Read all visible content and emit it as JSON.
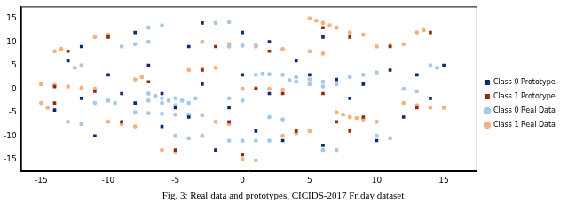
{
  "chart_data": {
    "type": "scatter",
    "title": "Fig. 3: Real data and prototypes, CICIDS-2017 Friday dataset",
    "xlim": [
      -16.5,
      17.5
    ],
    "xticks": [
      -15,
      -10,
      -5,
      0,
      5,
      10,
      15
    ],
    "ylim": [
      -17.5,
      17.5
    ],
    "yticks": [
      -15,
      -10,
      -5,
      0,
      5,
      10,
      15
    ],
    "grid": false,
    "legend": "right",
    "series": [
      {
        "name": "Class 0 Real Data",
        "color": "#a3c8e8",
        "marker": "circle",
        "x": [
          -7,
          -6.5,
          -6,
          -5.5,
          -5,
          -4.5,
          -4,
          -6,
          -5,
          -7,
          -3.5,
          -8,
          -7,
          -6,
          -5,
          -4,
          -3,
          3,
          4,
          5,
          6,
          7,
          4,
          5,
          3.5,
          6,
          8,
          9,
          10,
          -10,
          -9.5,
          -11,
          0,
          1,
          2,
          -1,
          -5,
          -4,
          -3,
          -9,
          -8,
          -7,
          1,
          1.5,
          2,
          -1,
          0,
          1,
          -12,
          -12.5,
          12,
          13,
          10,
          11,
          -2,
          -1,
          6,
          7,
          -13,
          -12,
          -1,
          0,
          14,
          14.5,
          2,
          3,
          -7,
          -6
        ],
        "values": [
          -1,
          -1.5,
          -2,
          -2.5,
          -2,
          -2.5,
          -3,
          -3,
          -3.5,
          -2.5,
          -2,
          -5,
          -5.2,
          -5.3,
          -5.5,
          -5.5,
          -5.6,
          3,
          2.5,
          2,
          1.5,
          1,
          1.5,
          1,
          1.8,
          0.5,
          2.5,
          3,
          3.5,
          -2.5,
          -3,
          -3,
          -11,
          -11,
          -11,
          -11,
          -10,
          -10.5,
          -10,
          9,
          9.5,
          10,
          3,
          3.2,
          3.1,
          9,
          9.2,
          9.3,
          5,
          4.5,
          0,
          -0.5,
          -10,
          -10.5,
          14,
          14.2,
          -13,
          -13,
          -7,
          -7.5,
          -2,
          -2.5,
          5,
          4.5,
          -6,
          -6.5,
          13,
          13.5
        ]
      },
      {
        "name": "Class 1 Real Data",
        "color": "#f5b07f",
        "marker": "circle",
        "x": [
          5,
          6,
          7,
          8,
          9,
          5.5,
          6.5,
          -3,
          -1,
          1,
          3,
          5,
          6,
          7,
          7.5,
          8,
          9,
          10,
          8.5,
          0,
          1,
          2,
          3,
          -15,
          -14,
          -13,
          -12,
          -11,
          -10,
          -9,
          -8,
          12,
          13,
          14,
          15,
          -4,
          -3,
          -2,
          -11,
          -10,
          10,
          11,
          12,
          -6,
          -5,
          3,
          4,
          5,
          -14,
          -13.5,
          13,
          13.5,
          -8,
          -7.5,
          0,
          1,
          -2,
          -1,
          -15,
          -14.5
        ],
        "values": [
          15,
          14,
          13,
          12,
          11.5,
          14.5,
          13.5,
          10,
          9.5,
          9,
          8.5,
          8,
          7.5,
          -5,
          -5.5,
          -6,
          -6.5,
          -7,
          -6.2,
          0,
          0.2,
          0,
          -0.2,
          1,
          0.8,
          0.5,
          0.2,
          0,
          -7,
          -7.5,
          -8,
          -3,
          -3.5,
          -4,
          -4,
          4,
          4.2,
          4.5,
          11,
          11.5,
          9,
          9.2,
          9.5,
          -13,
          -13.5,
          -10,
          -9.5,
          -9,
          8,
          8.5,
          12,
          12.5,
          2,
          2.5,
          -15,
          -15.2,
          -7,
          -7.5,
          -3,
          -4
        ]
      },
      {
        "name": "Class 0 Prototype",
        "color": "#0c2a6e",
        "marker": "square",
        "x": [
          -14,
          -12,
          -10,
          -9,
          -8,
          -6,
          -5,
          -4,
          -3,
          -7,
          -12,
          -8,
          -3,
          0,
          2,
          4,
          5,
          7,
          9,
          11,
          13,
          15,
          -1,
          1,
          3,
          6,
          10,
          12,
          -6,
          -2,
          -11,
          0,
          2,
          8,
          14,
          -13,
          6,
          -4
        ],
        "values": [
          -4.5,
          -2,
          3,
          -1,
          -3,
          -1,
          -4,
          -6,
          1,
          5,
          9,
          12,
          14,
          12,
          10,
          6,
          3,
          2,
          1,
          4,
          3,
          5,
          -4,
          -9,
          -11,
          -12,
          -11,
          -6,
          -8,
          -13,
          -10,
          3,
          -1,
          -2,
          -2,
          6,
          11,
          9
        ]
      },
      {
        "name": "Class 1 Prototype",
        "color": "#8e2b10",
        "marker": "square",
        "x": [
          -14,
          -11,
          -9,
          -7,
          -3,
          -2,
          2,
          6,
          8,
          -10,
          11,
          14,
          13,
          9,
          7,
          8,
          4,
          1,
          3,
          -1,
          -5,
          0,
          -14,
          -13,
          6
        ],
        "values": [
          0.5,
          -0.5,
          -7,
          1.5,
          4,
          9,
          8,
          13,
          11,
          11,
          9,
          12,
          -4,
          -6,
          -7,
          -9,
          -9,
          0,
          -1,
          -7,
          -13,
          -14,
          -3,
          8,
          -1
        ]
      }
    ]
  }
}
